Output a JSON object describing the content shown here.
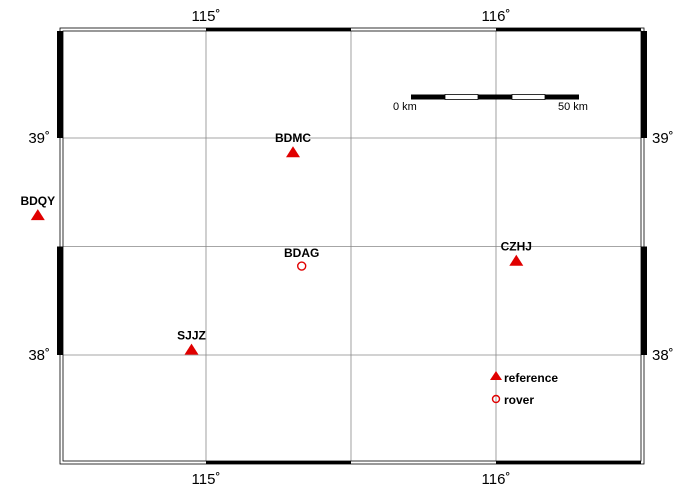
{
  "map": {
    "lon_range": [
      114.0,
      116.5
    ],
    "lat_range": [
      37.5,
      39.5
    ],
    "lon_ticks": [
      {
        "value": 115,
        "label": "115˚"
      },
      {
        "value": 116,
        "label": "116˚"
      }
    ],
    "lat_ticks": [
      {
        "value": 38,
        "label": "38˚"
      },
      {
        "value": 39,
        "label": "39˚"
      }
    ],
    "gridlines": {
      "lon": [
        115.0,
        115.5,
        116.0
      ],
      "lat": [
        38.0,
        38.5,
        39.0
      ]
    },
    "colors": {
      "symbol": "#e00000",
      "frame": "#000000",
      "grid": "#888888"
    }
  },
  "stations": {
    "reference": [
      {
        "name": "BDMC",
        "lon": 115.3,
        "lat": 38.93
      },
      {
        "name": "BDQY",
        "lon": 114.42,
        "lat": 38.64
      },
      {
        "name": "CZHJ",
        "lon": 116.07,
        "lat": 38.43
      },
      {
        "name": "SJJZ",
        "lon": 114.95,
        "lat": 38.02
      }
    ],
    "rover": [
      {
        "name": "BDAG",
        "lon": 115.33,
        "lat": 38.41
      }
    ]
  },
  "scale_bar": {
    "start_label": "0 km",
    "end_label": "50 km"
  },
  "legend": {
    "reference_label": "reference",
    "rover_label": "rover"
  }
}
